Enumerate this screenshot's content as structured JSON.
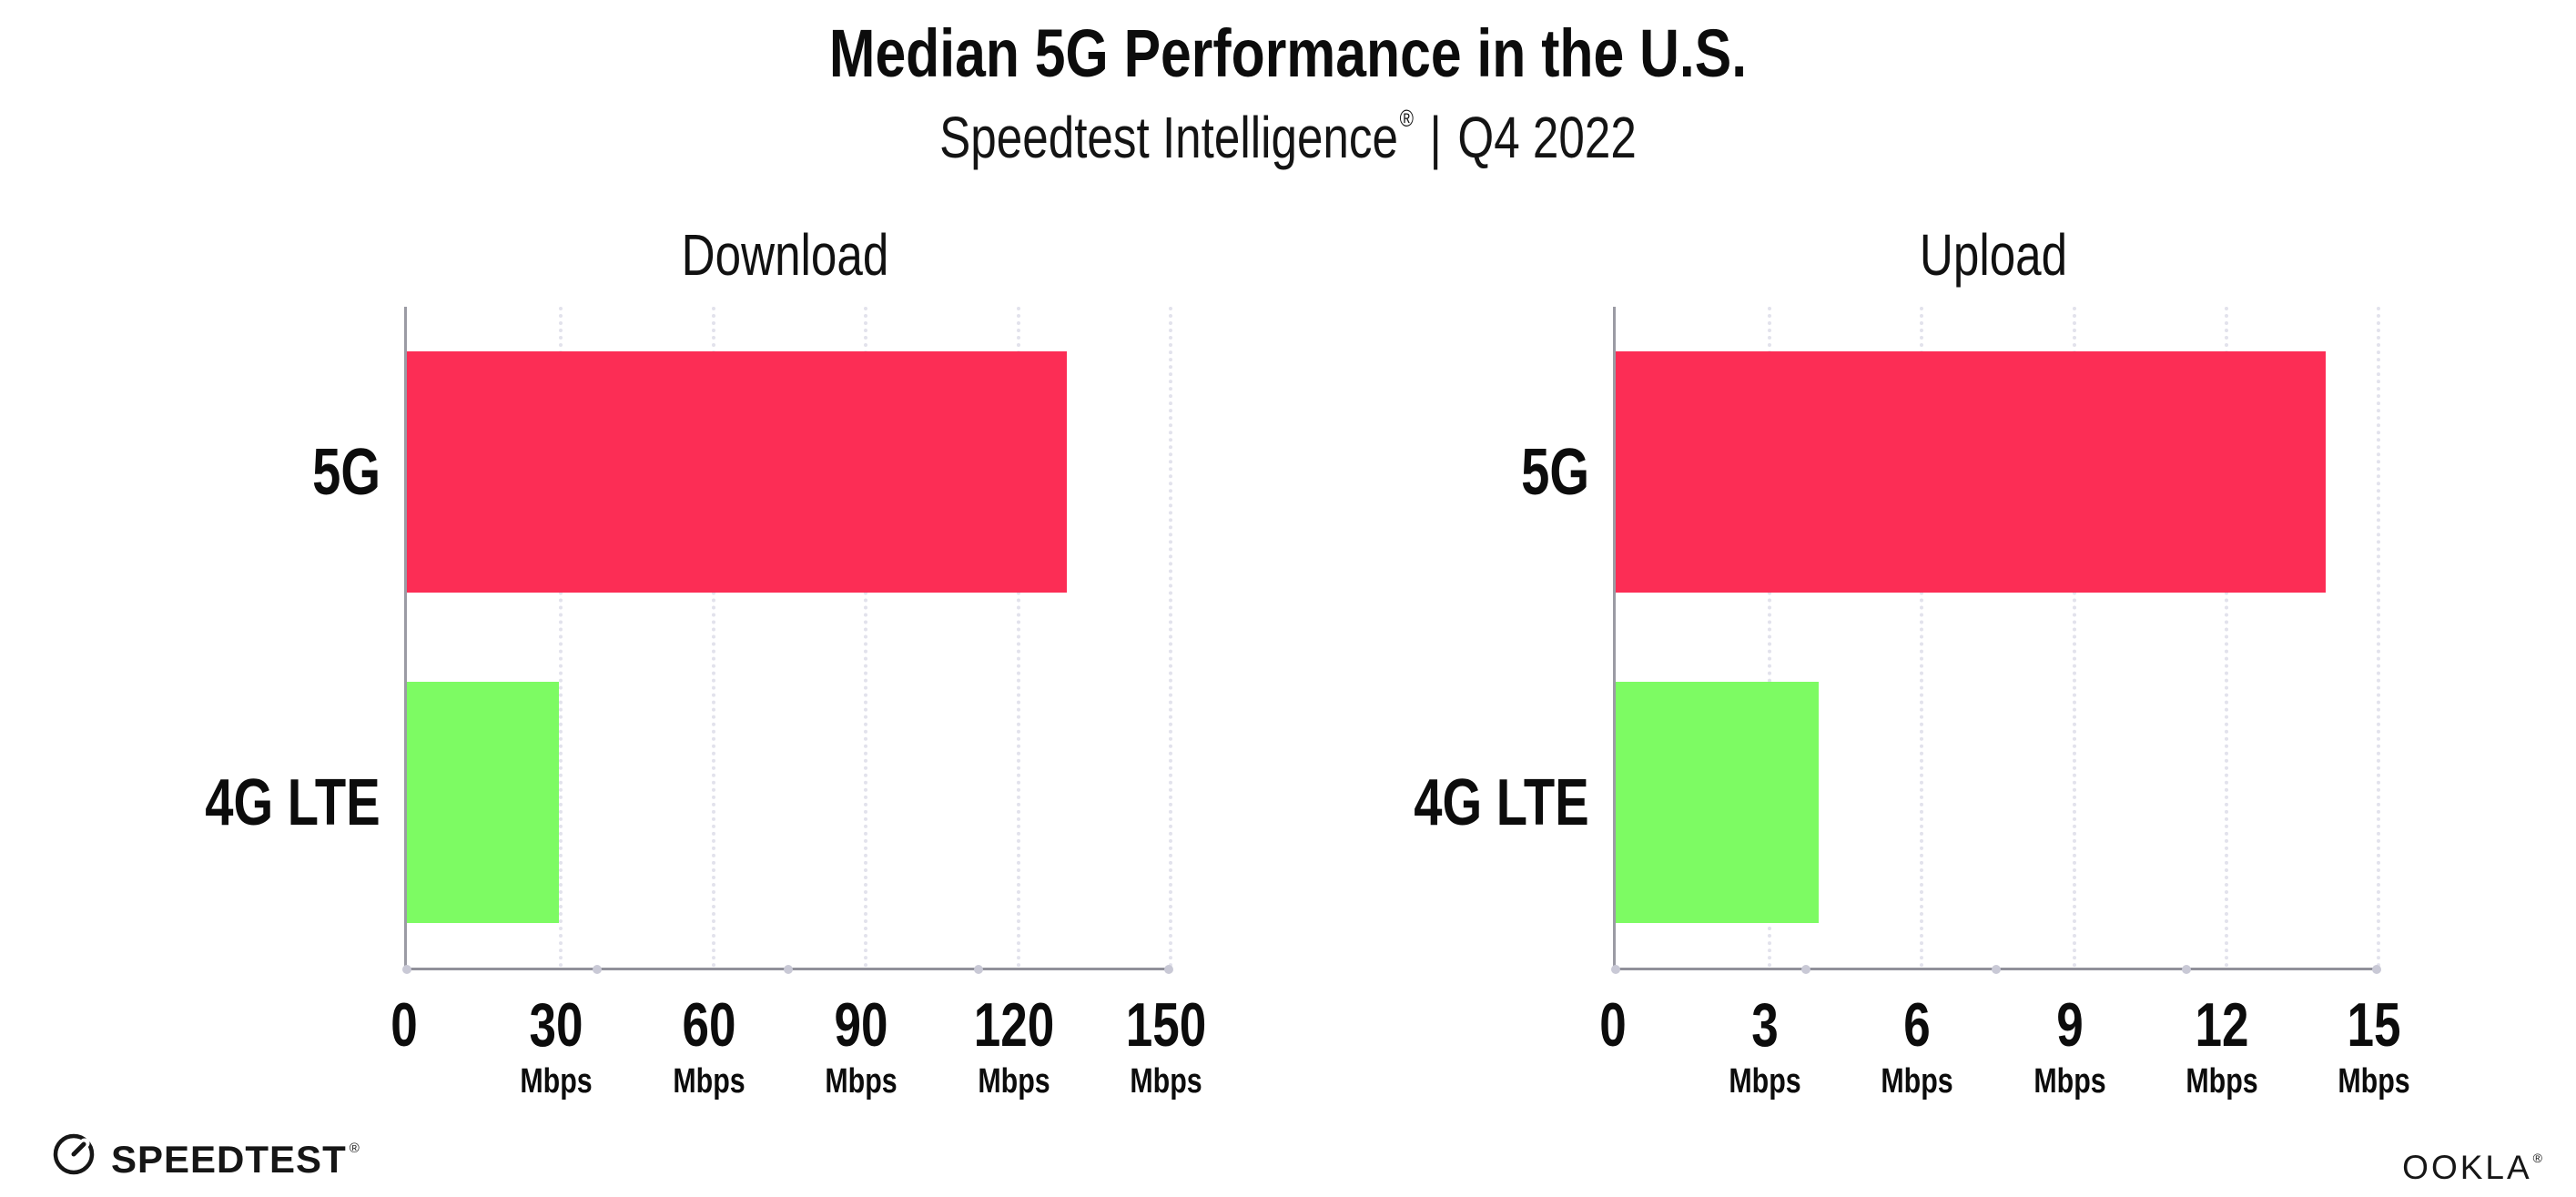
{
  "title": "Median 5G Performance in the U.S.",
  "subtitle": {
    "brand": "Speedtest Intelligence",
    "registered_mark": "®",
    "separator": "|",
    "period": "Q4 2022"
  },
  "footer": {
    "speedtest_label": "SPEEDTEST",
    "speedtest_registered_mark": "®",
    "speedtest_icon": "gauge-dial-icon",
    "ookla_label": "OOKLA",
    "ookla_registered_mark": "®"
  },
  "colors": {
    "bar_5g": "#FC2D55",
    "bar_4g_lte": "#7DFB63",
    "y_axis_line": "#9b9ba4",
    "x_axis_line": "#90909a",
    "gridline": "#e2e2ec",
    "axis_tick_dot": "#c9c9d6",
    "text": "#0c0c0c",
    "background": "#ffffff"
  },
  "chart_data": [
    {
      "type": "bar",
      "orientation": "horizontal",
      "title": "Download",
      "categories": [
        "5G",
        "4G LTE"
      ],
      "values": [
        130,
        30
      ],
      "unit": "Mbps",
      "xlim": [
        0,
        150
      ],
      "xticks": [
        0,
        30,
        60,
        90,
        120,
        150
      ],
      "bar_colors": [
        "#FC2D55",
        "#7DFB63"
      ],
      "grid": "vertical-dotted",
      "legend": "none"
    },
    {
      "type": "bar",
      "orientation": "horizontal",
      "title": "Upload",
      "categories": [
        "5G",
        "4G LTE"
      ],
      "values": [
        14,
        4
      ],
      "unit": "Mbps",
      "xlim": [
        0,
        15
      ],
      "xticks": [
        0,
        3,
        6,
        9,
        12,
        15
      ],
      "bar_colors": [
        "#FC2D55",
        "#7DFB63"
      ],
      "grid": "vertical-dotted",
      "legend": "none"
    }
  ]
}
